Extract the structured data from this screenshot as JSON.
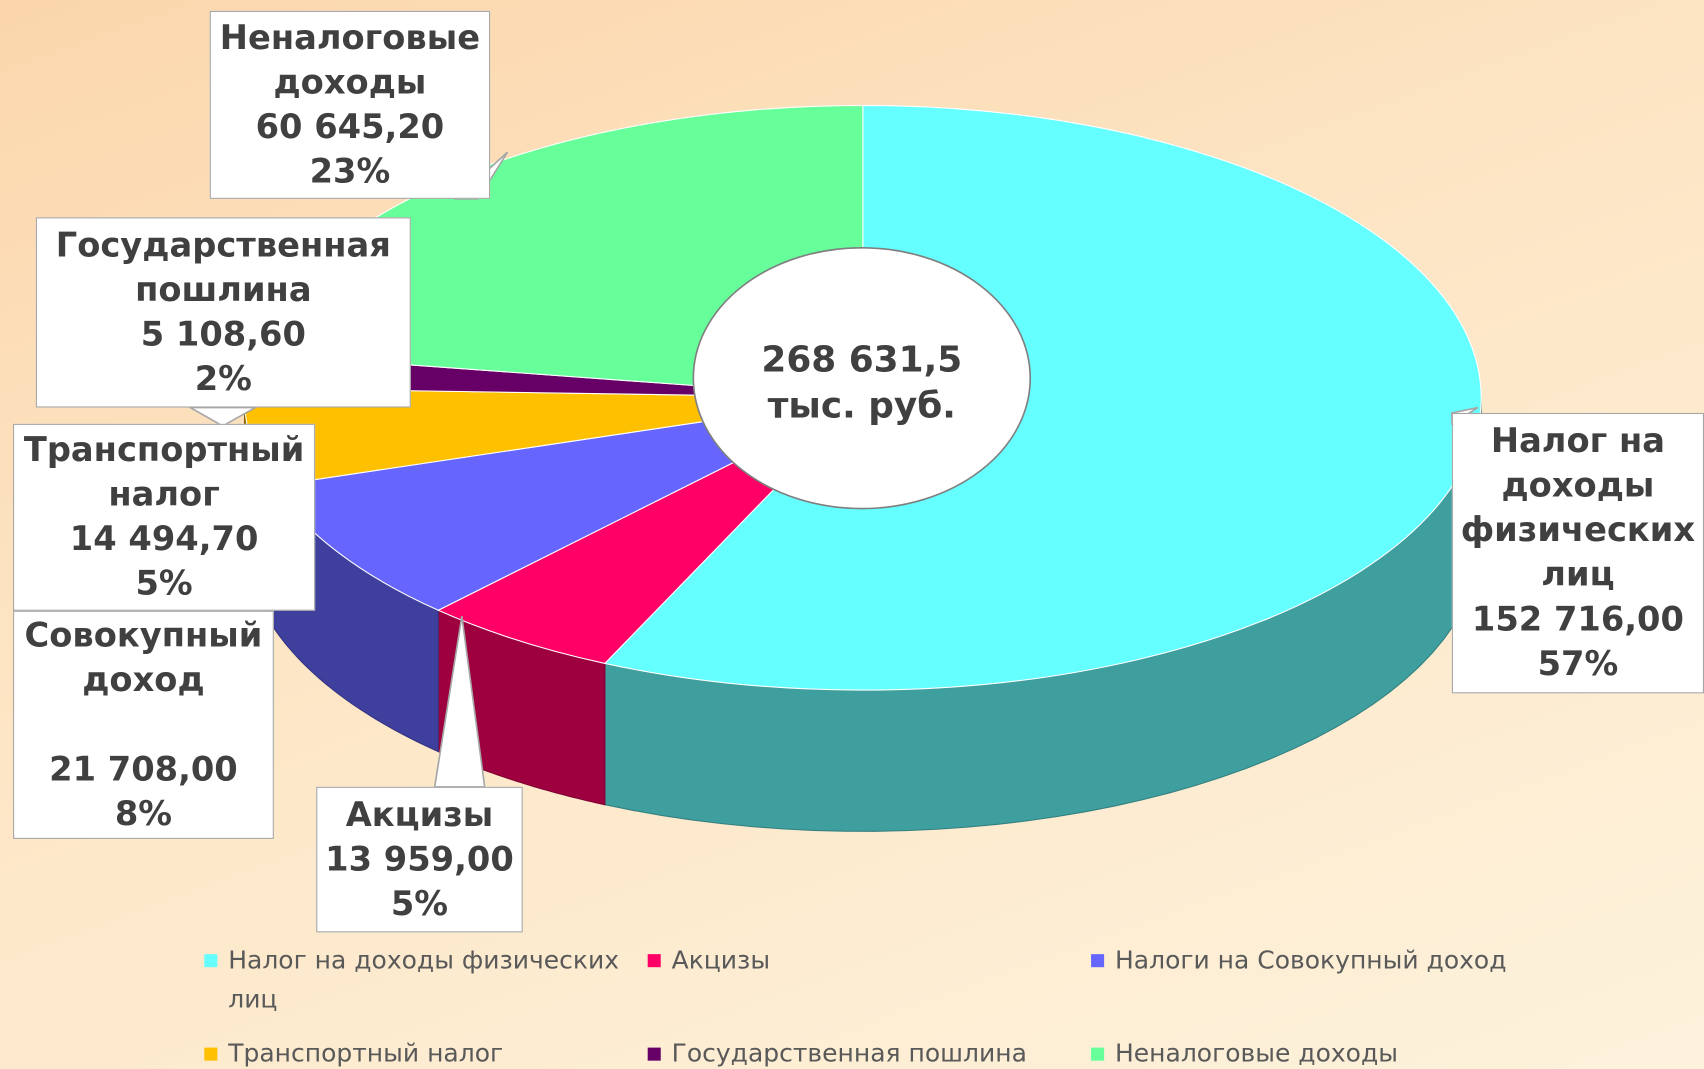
{
  "chart_data": {
    "type": "pie",
    "categories": [
      "Налог на доходы физических лиц",
      "Акцизы",
      "Налоги на Совокупный доход",
      "Транспортный налог",
      "Государственная пошлина",
      "Неналоговые доходы"
    ],
    "label_names": [
      "Налог на доходы физических лиц",
      "Акцизы",
      "Совокупный доход",
      "Транспортный налог",
      "Государственная пошлина",
      "Неналоговые доходы"
    ],
    "values": [
      152716,
      13959,
      21708,
      14494.7,
      5108.6,
      60645.2
    ],
    "value_labels": [
      "152 716,00",
      "13 959,00",
      "21 708,00",
      "14 494,70",
      "5 108,60",
      "60 645,20"
    ],
    "percents": [
      57,
      5,
      8,
      5,
      2,
      23
    ],
    "percent_labels": [
      "57%",
      "5%",
      "8%",
      "5%",
      "2%",
      "23%"
    ],
    "colors": [
      "#66ffff",
      "#ff0066",
      "#6666ff",
      "#ffc000",
      "#660066",
      "#66ff99"
    ],
    "center_label": [
      "268 631,5",
      "тыс. руб."
    ],
    "legend_position": "bottom"
  }
}
